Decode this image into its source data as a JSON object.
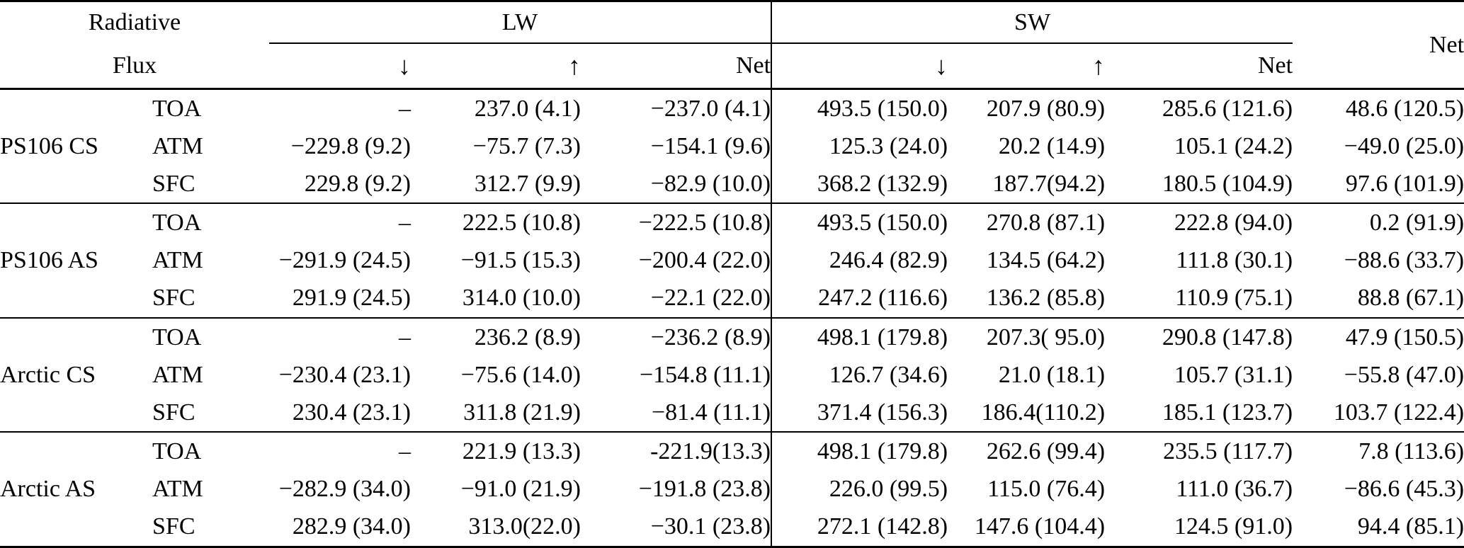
{
  "page": {
    "background_color": "#ffffff",
    "text_color": "#000000",
    "rule_color": "#000000"
  },
  "table": {
    "header": {
      "row_label_line1": "Radiative",
      "row_label_line2": "Flux",
      "lw_group": "LW",
      "sw_group": "SW",
      "net_total": "Net",
      "sub_net": "Net",
      "icons": {
        "down_arrow": "↓",
        "up_arrow": "↑"
      }
    },
    "column_semantics": [
      "LW down",
      "LW up",
      "LW Net",
      "SW down",
      "SW up",
      "SW Net",
      "Net"
    ],
    "groups": [
      {
        "label": "PS106 CS",
        "rows": [
          {
            "level": "TOA",
            "values": [
              "–",
              "237.0 (4.1)",
              "−237.0 (4.1)",
              "493.5 (150.0)",
              "207.9 (80.9)",
              "285.6 (121.6)",
              "48.6 (120.5)"
            ]
          },
          {
            "level": "ATM",
            "values": [
              "−229.8 (9.2)",
              "−75.7 (7.3)",
              "−154.1 (9.6)",
              "125.3 (24.0)",
              "20.2 (14.9)",
              "105.1 (24.2)",
              "−49.0 (25.0)"
            ]
          },
          {
            "level": "SFC",
            "values": [
              "229.8 (9.2)",
              "312.7 (9.9)",
              "−82.9 (10.0)",
              "368.2 (132.9)",
              "187.7(94.2)",
              "180.5 (104.9)",
              "97.6 (101.9)"
            ]
          }
        ]
      },
      {
        "label": "PS106 AS",
        "rows": [
          {
            "level": "TOA",
            "values": [
              "–",
              "222.5 (10.8)",
              "−222.5 (10.8)",
              "493.5 (150.0)",
              "270.8 (87.1)",
              "222.8 (94.0)",
              "0.2 (91.9)"
            ]
          },
          {
            "level": "ATM",
            "values": [
              "−291.9 (24.5)",
              "−91.5 (15.3)",
              "−200.4 (22.0)",
              "246.4 (82.9)",
              "134.5 (64.2)",
              "111.8 (30.1)",
              "−88.6 (33.7)"
            ]
          },
          {
            "level": "SFC",
            "values": [
              "291.9 (24.5)",
              "314.0 (10.0)",
              "−22.1 (22.0)",
              "247.2 (116.6)",
              "136.2 (85.8)",
              "110.9 (75.1)",
              "88.8 (67.1)"
            ]
          }
        ]
      },
      {
        "label": "Arctic CS",
        "rows": [
          {
            "level": "TOA",
            "values": [
              "–",
              "236.2 (8.9)",
              "−236.2 (8.9)",
              "498.1 (179.8)",
              "207.3( 95.0)",
              "290.8 (147.8)",
              "47.9 (150.5)"
            ]
          },
          {
            "level": "ATM",
            "values": [
              "−230.4 (23.1)",
              "−75.6 (14.0)",
              "−154.8 (11.1)",
              "126.7 (34.6)",
              "21.0 (18.1)",
              "105.7 (31.1)",
              "−55.8 (47.0)"
            ]
          },
          {
            "level": "SFC",
            "values": [
              "230.4 (23.1)",
              "311.8 (21.9)",
              "−81.4 (11.1)",
              "371.4 (156.3)",
              "186.4(110.2)",
              "185.1 (123.7)",
              "103.7 (122.4)"
            ]
          }
        ]
      },
      {
        "label": "Arctic AS",
        "rows": [
          {
            "level": "TOA",
            "values": [
              "–",
              "221.9 (13.3)",
              "-221.9(13.3)",
              "498.1 (179.8)",
              "262.6 (99.4)",
              "235.5 (117.7)",
              "7.8 (113.6)"
            ]
          },
          {
            "level": "ATM",
            "values": [
              "−282.9 (34.0)",
              "−91.0 (21.9)",
              "−191.8 (23.8)",
              "226.0 (99.5)",
              "115.0 (76.4)",
              "111.0 (36.7)",
              "−86.6 (45.3)"
            ]
          },
          {
            "level": "SFC",
            "values": [
              "282.9 (34.0)",
              "313.0(22.0)",
              "−30.1 (23.8)",
              "272.1 (142.8)",
              "147.6 (104.4)",
              "124.5 (91.0)",
              "94.4 (85.1)"
            ]
          }
        ]
      }
    ]
  }
}
